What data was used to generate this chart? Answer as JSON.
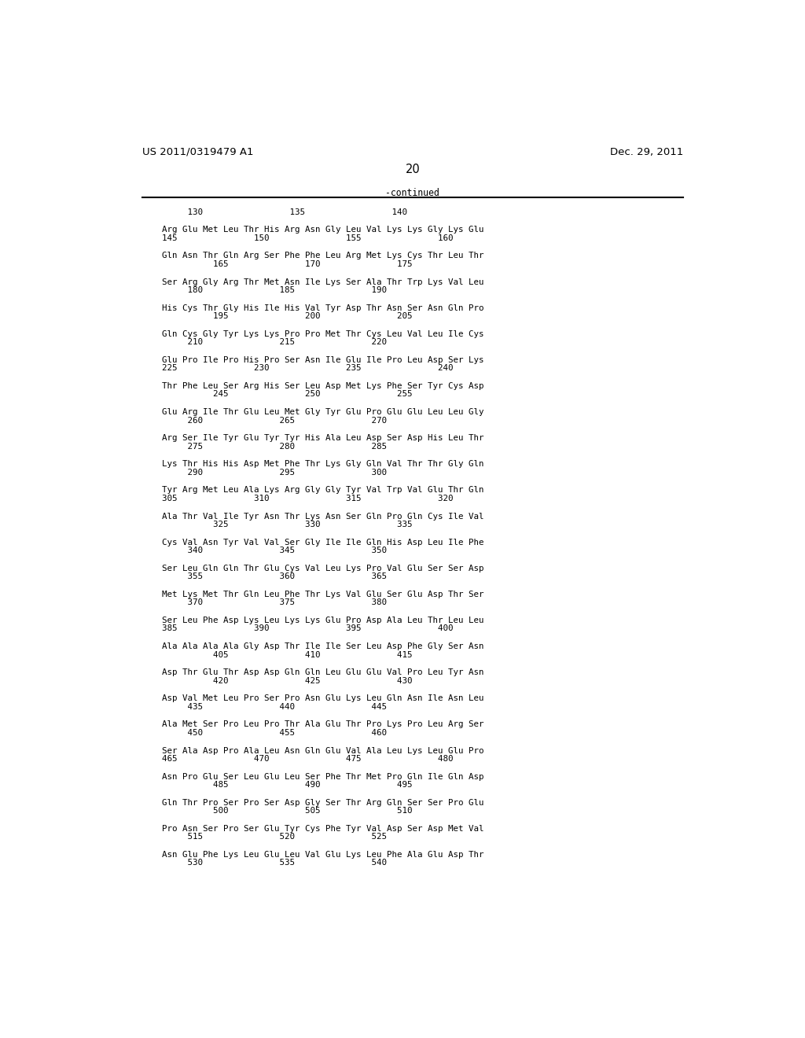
{
  "header_left": "US 2011/0319479 A1",
  "header_right": "Dec. 29, 2011",
  "page_number": "20",
  "continued_label": "-continued",
  "background_color": "#ffffff",
  "text_color": "#000000",
  "line_color": "#000000",
  "header_font_size": 9.5,
  "page_num_font_size": 10.5,
  "seq_font_size": 7.8,
  "mono_font": "DejaVu Sans Mono",
  "first_num_line": "     130                 135                 140",
  "blocks": [
    [
      "Arg Glu Met Leu Thr His Arg Asn Gly Leu Val Lys Lys Gly Lys Glu",
      "145               150               155               160"
    ],
    [
      "Gln Asn Thr Gln Arg Ser Phe Phe Leu Arg Met Lys Cys Thr Leu Thr",
      "          165               170               175"
    ],
    [
      "Ser Arg Gly Arg Thr Met Asn Ile Lys Ser Ala Thr Trp Lys Val Leu",
      "     180               185               190"
    ],
    [
      "His Cys Thr Gly His Ile His Val Tyr Asp Thr Asn Ser Asn Gln Pro",
      "          195               200               205"
    ],
    [
      "Gln Cys Gly Tyr Lys Lys Pro Pro Met Thr Cys Leu Val Leu Ile Cys",
      "     210               215               220"
    ],
    [
      "Glu Pro Ile Pro His Pro Ser Asn Ile Glu Ile Pro Leu Asp Ser Lys",
      "225               230               235               240"
    ],
    [
      "Thr Phe Leu Ser Arg His Ser Leu Asp Met Lys Phe Ser Tyr Cys Asp",
      "          245               250               255"
    ],
    [
      "Glu Arg Ile Thr Glu Leu Met Gly Tyr Glu Pro Glu Glu Leu Leu Gly",
      "     260               265               270"
    ],
    [
      "Arg Ser Ile Tyr Glu Tyr Tyr His Ala Leu Asp Ser Asp His Leu Thr",
      "     275               280               285"
    ],
    [
      "Lys Thr His His Asp Met Phe Thr Lys Gly Gln Val Thr Thr Gly Gln",
      "     290               295               300"
    ],
    [
      "Tyr Arg Met Leu Ala Lys Arg Gly Gly Tyr Val Trp Val Glu Thr Gln",
      "305               310               315               320"
    ],
    [
      "Ala Thr Val Ile Tyr Asn Thr Lys Asn Ser Gln Pro Gln Cys Ile Val",
      "          325               330               335"
    ],
    [
      "Cys Val Asn Tyr Val Val Ser Gly Ile Ile Gln His Asp Leu Ile Phe",
      "     340               345               350"
    ],
    [
      "Ser Leu Gln Gln Thr Glu Cys Val Leu Lys Pro Val Glu Ser Ser Asp",
      "     355               360               365"
    ],
    [
      "Met Lys Met Thr Gln Leu Phe Thr Lys Val Glu Ser Glu Asp Thr Ser",
      "     370               375               380"
    ],
    [
      "Ser Leu Phe Asp Lys Leu Lys Lys Glu Pro Asp Ala Leu Thr Leu Leu",
      "385               390               395               400"
    ],
    [
      "Ala Ala Ala Ala Gly Asp Thr Ile Ile Ser Leu Asp Phe Gly Ser Asn",
      "          405               410               415"
    ],
    [
      "Asp Thr Glu Thr Asp Asp Gln Gln Leu Glu Glu Val Pro Leu Tyr Asn",
      "          420               425               430"
    ],
    [
      "Asp Val Met Leu Pro Ser Pro Asn Glu Lys Leu Gln Asn Ile Asn Leu",
      "     435               440               445"
    ],
    [
      "Ala Met Ser Pro Leu Pro Thr Ala Glu Thr Pro Lys Pro Leu Arg Ser",
      "     450               455               460"
    ],
    [
      "Ser Ala Asp Pro Ala Leu Asn Gln Glu Val Ala Leu Lys Leu Glu Pro",
      "465               470               475               480"
    ],
    [
      "Asn Pro Glu Ser Leu Glu Leu Ser Phe Thr Met Pro Gln Ile Gln Asp",
      "          485               490               495"
    ],
    [
      "Gln Thr Pro Ser Pro Ser Asp Gly Ser Thr Arg Gln Ser Ser Pro Glu",
      "          500               505               510"
    ],
    [
      "Pro Asn Ser Pro Ser Glu Tyr Cys Phe Tyr Val Asp Ser Asp Met Val",
      "     515               520               525"
    ],
    [
      "Asn Glu Phe Lys Leu Glu Leu Val Glu Lys Leu Phe Ala Glu Asp Thr",
      "     530               535               540"
    ]
  ]
}
